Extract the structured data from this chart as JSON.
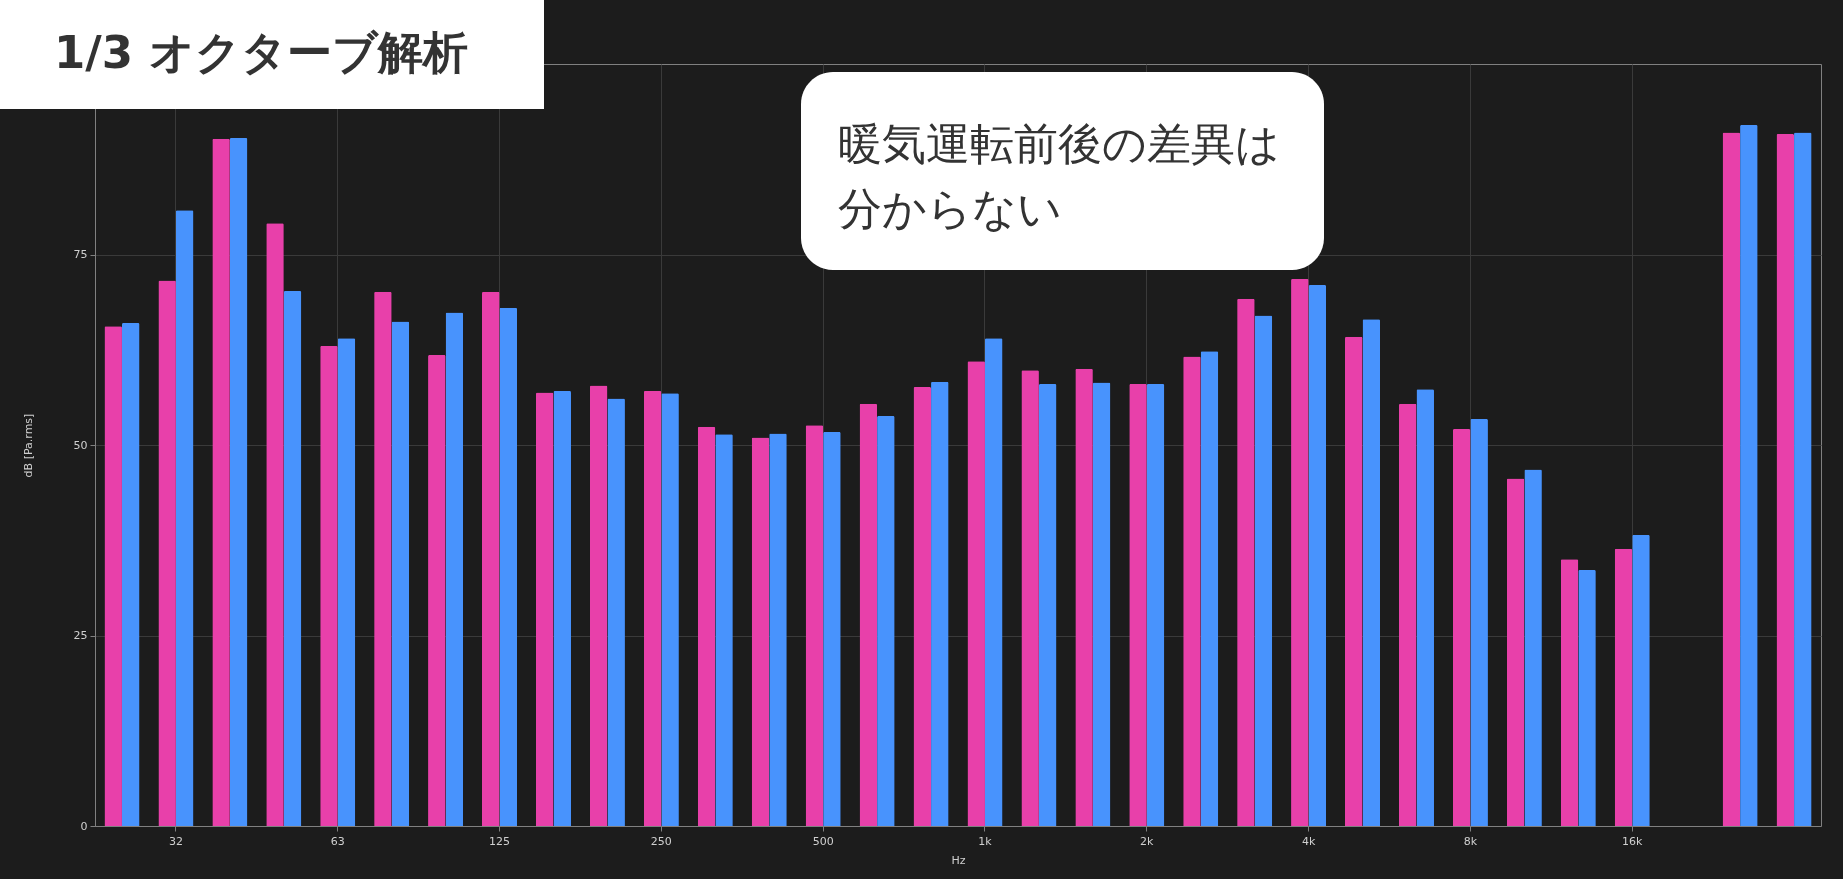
{
  "chart_data": {
    "type": "bar",
    "title": "1/3 オクターブ解析",
    "xlabel": "Hz",
    "ylabel": "dB [Pa.rms]",
    "annotations": [
      "暖気運転前後の差異は分からない"
    ],
    "categories": [
      null,
      "32",
      null,
      null,
      "63",
      null,
      null,
      "125",
      null,
      null,
      "250",
      null,
      null,
      "500",
      null,
      null,
      "1k",
      null,
      null,
      "2k",
      null,
      null,
      "4k",
      null,
      null,
      "8k",
      null,
      null,
      "16k",
      null,
      null,
      null
    ],
    "series": [
      {
        "color": "#e840aa",
        "values": [
          65.6,
          71.6,
          90.2,
          79.1,
          63.0,
          70.1,
          61.8,
          70.1,
          56.9,
          57.8,
          57.1,
          52.4,
          51.0,
          52.6,
          55.4,
          57.6,
          61.0,
          59.8,
          60.0,
          58.0,
          61.6,
          69.2,
          71.8,
          64.2,
          55.4,
          52.1,
          45.6,
          35.0,
          36.4,
          null,
          91.0,
          90.8
        ]
      },
      {
        "color": "#4893fd",
        "values": [
          66.0,
          80.8,
          90.3,
          70.2,
          64.0,
          66.2,
          67.4,
          68.0,
          57.1,
          56.1,
          56.8,
          51.4,
          51.5,
          51.7,
          53.8,
          58.3,
          64.0,
          58.0,
          58.2,
          58.0,
          62.3,
          67.0,
          71.0,
          66.5,
          57.3,
          53.4,
          46.8,
          33.6,
          38.2,
          null,
          92.0,
          91.0
        ]
      }
    ],
    "ylim": [
      0,
      100
    ],
    "yticks": [
      0,
      25,
      50,
      75
    ],
    "grid": true,
    "legend": false
  }
}
